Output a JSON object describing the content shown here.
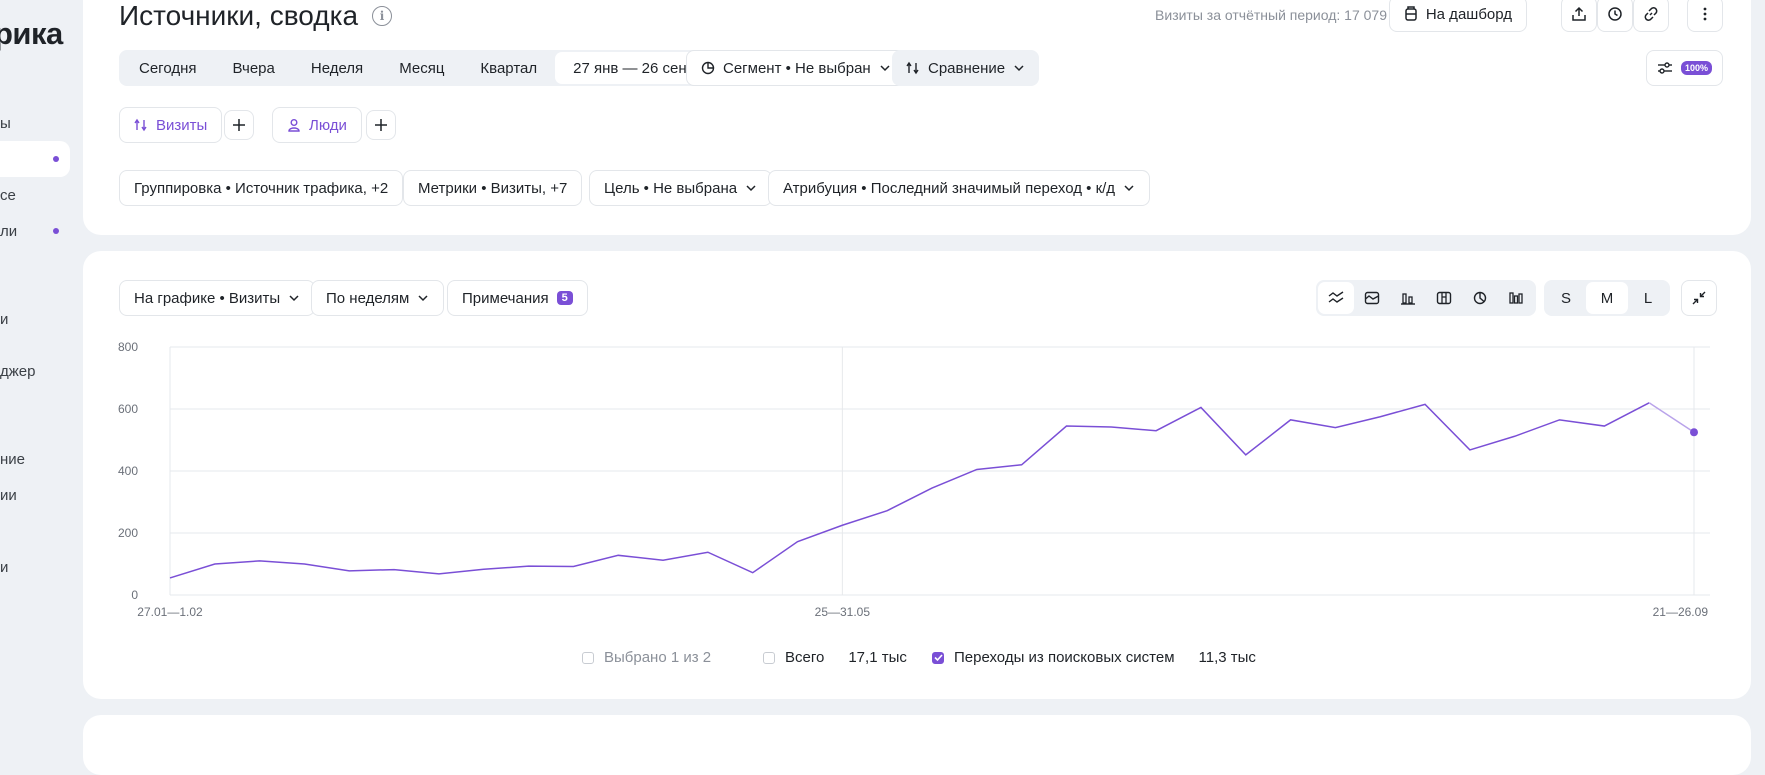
{
  "sidebar": {
    "brand": "рика",
    "items": [
      {
        "label": "ы",
        "active": false
      },
      {
        "label": "",
        "active": true
      },
      {
        "label": "се",
        "active": false
      },
      {
        "label": "ли",
        "active": false
      },
      {
        "label": "и",
        "active": false
      },
      {
        "label": "джер",
        "active": false
      },
      {
        "label": "ние",
        "active": false
      },
      {
        "label": "ии",
        "active": false
      },
      {
        "label": "и",
        "active": false
      }
    ]
  },
  "header": {
    "title": "Источники, сводка",
    "visits_note": "Визиты за отчётный период: 17 079",
    "dashboard_label": "На дашборд"
  },
  "period": {
    "options": [
      "Сегодня",
      "Вчера",
      "Неделя",
      "Месяц",
      "Квартал"
    ],
    "range": "27 янв — 26 сен",
    "segment": "Сегмент • Не выбран",
    "comparison": "Сравнение",
    "sampling": "100%"
  },
  "filters": {
    "visits": "Визиты",
    "people": "Люди",
    "grouping": "Группировка  • Источник трафика, +2",
    "metrics": "Метрики  • Визиты, +7",
    "goal": "Цель • Не выбрана",
    "attribution": "Атрибуция • Последний значимый переход • к/д"
  },
  "chart_controls": {
    "on_chart": "На графике • Визиты",
    "by_weeks": "По неделям",
    "notes": "Примечания",
    "notes_count": "5",
    "sizes": [
      "S",
      "M",
      "L"
    ],
    "selected_size": "M"
  },
  "colors": {
    "accent": "#7a4fd6",
    "line": "#7a4fd6"
  },
  "chart_data": {
    "type": "line",
    "x_ticks": [
      "27.01—1.02",
      "25—31.05",
      "21—26.09"
    ],
    "y_ticks": [
      "0",
      "200",
      "400",
      "600",
      "800"
    ],
    "ylim": [
      0,
      800
    ],
    "series": [
      {
        "name": "Переходы из поисковых систем",
        "values": [
          55,
          100,
          110,
          100,
          78,
          82,
          68,
          83,
          93,
          92,
          128,
          112,
          138,
          72,
          172,
          225,
          272,
          345,
          405,
          420,
          545,
          542,
          530,
          605,
          452,
          565,
          540,
          575,
          615,
          468,
          512,
          565,
          545,
          620,
          525
        ]
      }
    ],
    "grid": true
  },
  "legend": {
    "selected": "Выбрано 1 из 2",
    "total_label": "Всего",
    "total_value": "17,1 тыс",
    "series_label": "Переходы из поисковых систем",
    "series_value": "11,3 тыс"
  }
}
